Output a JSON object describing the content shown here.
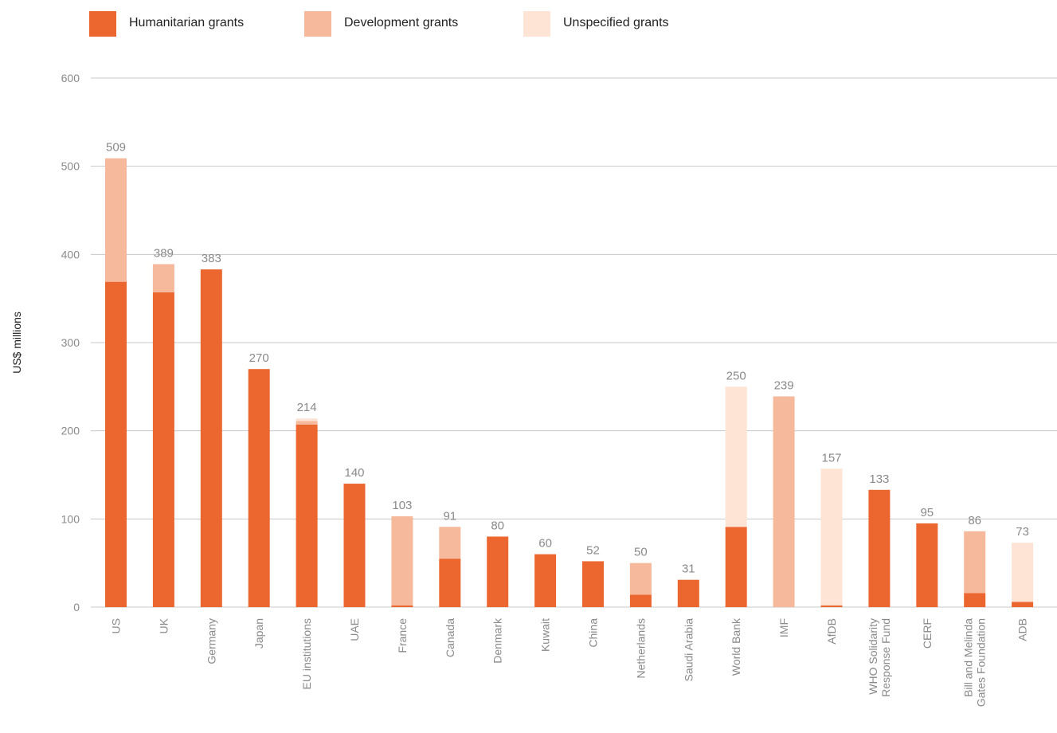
{
  "chart_data": {
    "type": "bar",
    "stacked": true,
    "title": "",
    "ylabel": "US$ millions",
    "xlabel": "",
    "ylim": [
      0,
      600
    ],
    "yticks": [
      0,
      100,
      200,
      300,
      400,
      500,
      600
    ],
    "grid": true,
    "legend_position": "top-left",
    "categories": [
      "US",
      "UK",
      "Germany",
      "Japan",
      "EU institutions",
      "UAE",
      "France",
      "Canada",
      "Denmark",
      "Kuwait",
      "China",
      "Netherlands",
      "Saudi Arabia",
      "World Bank",
      "IMF",
      "AfDB",
      "WHO Solidarity Response Fund",
      "CERF",
      "Bill and Melinda Gates Foundation",
      "ADB"
    ],
    "series": [
      {
        "name": "Humanitarian grants",
        "color": "#ec6630",
        "values": [
          369,
          357,
          383,
          270,
          207,
          140,
          2,
          55,
          80,
          60,
          52,
          14,
          31,
          91,
          0,
          2,
          133,
          95,
          16,
          6
        ]
      },
      {
        "name": "Development grants",
        "color": "#f6b99c",
        "values": [
          140,
          32,
          0,
          0,
          4,
          0,
          101,
          36,
          0,
          0,
          0,
          36,
          0,
          0,
          239,
          0,
          0,
          0,
          70,
          0
        ]
      },
      {
        "name": "Unspecified grants",
        "color": "#fde4d4",
        "values": [
          0,
          0,
          0,
          0,
          3,
          0,
          0,
          0,
          0,
          0,
          0,
          0,
          0,
          159,
          0,
          155,
          0,
          0,
          0,
          67
        ]
      }
    ],
    "totals": [
      509,
      389,
      383,
      270,
      214,
      140,
      103,
      91,
      80,
      60,
      52,
      50,
      31,
      250,
      239,
      157,
      133,
      95,
      86,
      73
    ]
  }
}
